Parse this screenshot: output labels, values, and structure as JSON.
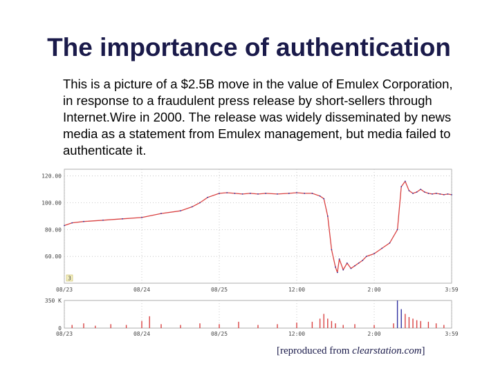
{
  "slide": {
    "title": "The importance of authentication",
    "body": "This is a picture of a $2.5B move in the value of Emulex Corporation, in response to a fraudulent press release by short-sellers through Internet.Wire in 2000.  The release was widely disseminated by news media as a statement from Emulex management, but media failed to authenticate it.",
    "caption_prefix": "[reproduced from ",
    "caption_source": "clearstation.com",
    "caption_suffix": "]"
  },
  "chart_data": [
    {
      "type": "line",
      "title": "",
      "ylim": [
        40,
        125
      ],
      "y_ticks": [
        "120.00",
        "100.00",
        "80.00",
        "60.00"
      ],
      "y_tick_values": [
        120,
        100,
        80,
        60
      ],
      "x_ticks": [
        "08/23",
        "08/24",
        "08/25",
        "12:00",
        "2:00",
        "3:59"
      ],
      "marker": "3",
      "grid": true,
      "price_color": "#d94040",
      "up_color": "#3030a0",
      "series": [
        {
          "x": [
            0,
            2,
            5,
            10,
            15,
            20,
            25,
            30,
            33,
            35,
            37,
            40,
            42,
            44,
            46,
            48,
            50,
            52,
            55,
            58,
            60,
            62,
            64,
            66,
            67,
            68,
            69,
            70,
            70.5,
            71,
            72,
            73,
            74,
            75,
            76,
            77,
            78,
            80,
            82,
            84,
            86,
            87,
            88,
            89,
            90,
            91,
            92,
            93,
            94,
            95,
            96,
            97,
            98,
            99,
            100
          ],
          "values": [
            83,
            85,
            86,
            87,
            88,
            89,
            92,
            94,
            97,
            100,
            104,
            107,
            107.5,
            107,
            106.5,
            107,
            106.5,
            107,
            106.5,
            107,
            107.5,
            107,
            107,
            105,
            103,
            90,
            65,
            52,
            48,
            58,
            50,
            55,
            51,
            53,
            55,
            57,
            60,
            62,
            66,
            70,
            80,
            112,
            116,
            109,
            107,
            108,
            110,
            108,
            107,
            106.5,
            107,
            106.5,
            106,
            106.5,
            106
          ]
        }
      ]
    },
    {
      "type": "bar",
      "title": "",
      "y_ticks": [
        "350 K",
        "0"
      ],
      "y_tick_values": [
        350,
        0
      ],
      "x_ticks": [
        "08/23",
        "08/24",
        "08/25",
        "12:00",
        "2:00",
        "3:59"
      ],
      "bar_color": "#d94040",
      "spike_color": "#3030a0",
      "x": [
        2,
        5,
        8,
        12,
        16,
        20,
        22,
        25,
        30,
        35,
        40,
        45,
        50,
        55,
        60,
        64,
        66,
        67,
        68,
        69,
        70,
        72,
        75,
        80,
        85,
        86,
        87,
        88,
        89,
        90,
        91,
        92,
        94,
        96,
        98
      ],
      "values": [
        40,
        60,
        30,
        50,
        40,
        90,
        150,
        50,
        40,
        60,
        50,
        80,
        40,
        50,
        70,
        80,
        120,
        180,
        120,
        90,
        60,
        40,
        50,
        40,
        60,
        380,
        240,
        180,
        140,
        120,
        100,
        90,
        80,
        60,
        40
      ]
    }
  ]
}
